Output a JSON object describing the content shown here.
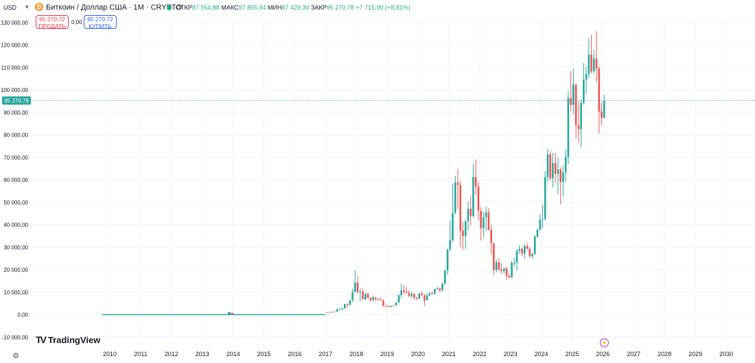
{
  "header": {
    "currency": "USD",
    "symbol_title": "Биткоин / Доллар США · 1M · CRYPTO",
    "open_label": "ОТКР",
    "open_value": "87 554,88",
    "high_label": "МАКС",
    "high_value": "97 855,94",
    "low_label": "МИН",
    "low_value": "87 429,30",
    "close_label": "ЗАКР",
    "close_value": "95 270,78",
    "change": "+7 715,90 (+8,81%)"
  },
  "trade": {
    "sell_price": "95 270,72",
    "sell_label": "ПРОДАТЬ",
    "spread": "0,00",
    "buy_price": "95 270,72",
    "buy_label": "КУПИТЬ"
  },
  "branding": {
    "logo_text": "TradingView"
  },
  "icons": {
    "coin": "bitcoin-icon",
    "settings": "gear-icon",
    "event": "lightning-icon"
  },
  "colors": {
    "up": "#26a69a",
    "down": "#ef5350",
    "price_line": "#26a69a"
  },
  "chart_data": {
    "type": "candlestick",
    "title": "Биткоин / Доллар США · 1M · CRYPTO",
    "ylim": [
      -10000,
      130000
    ],
    "yticks": [
      "-10 000,00",
      "0,00",
      "10 000,00",
      "20 000,00",
      "30 000,00",
      "40 000,00",
      "50 000,00",
      "60 000,00",
      "70 000,00",
      "80 000,00",
      "90 000,00",
      "100 000,00",
      "110 000,00",
      "120 000,00",
      "130 000,00"
    ],
    "ytick_values": [
      -10000,
      0,
      10000,
      20000,
      30000,
      40000,
      50000,
      60000,
      70000,
      80000,
      90000,
      100000,
      110000,
      120000,
      130000
    ],
    "xticks": [
      "2010",
      "2011",
      "2012",
      "2013",
      "2014",
      "2015",
      "2016",
      "2017",
      "2018",
      "2019",
      "2020",
      "2021",
      "2022",
      "2023",
      "2024",
      "2025",
      "2026",
      "2027",
      "2028",
      "2029",
      "2030"
    ],
    "last_price_label": "95 270,78",
    "last_price": 95270.78,
    "grid": true,
    "candles": [
      {
        "t": "2017-01",
        "o": 1000,
        "h": 1200,
        "l": 750,
        "c": 970
      },
      {
        "t": "2017-02",
        "o": 970,
        "h": 1200,
        "l": 910,
        "c": 1190
      },
      {
        "t": "2017-03",
        "o": 1190,
        "h": 1300,
        "l": 890,
        "c": 1080
      },
      {
        "t": "2017-04",
        "o": 1080,
        "h": 1420,
        "l": 1070,
        "c": 1350
      },
      {
        "t": "2017-05",
        "o": 1350,
        "h": 2800,
        "l": 1350,
        "c": 2300
      },
      {
        "t": "2017-06",
        "o": 2300,
        "h": 3000,
        "l": 2100,
        "c": 2480
      },
      {
        "t": "2017-07",
        "o": 2480,
        "h": 2900,
        "l": 1830,
        "c": 2870
      },
      {
        "t": "2017-08",
        "o": 2870,
        "h": 4700,
        "l": 2670,
        "c": 4730
      },
      {
        "t": "2017-09",
        "o": 4730,
        "h": 5000,
        "l": 2970,
        "c": 4340
      },
      {
        "t": "2017-10",
        "o": 4340,
        "h": 6450,
        "l": 4110,
        "c": 6450
      },
      {
        "t": "2017-11",
        "o": 6450,
        "h": 11500,
        "l": 5500,
        "c": 10000
      },
      {
        "t": "2017-12",
        "o": 10000,
        "h": 19700,
        "l": 10000,
        "c": 14200
      },
      {
        "t": "2018-01",
        "o": 14200,
        "h": 17200,
        "l": 9400,
        "c": 10200
      },
      {
        "t": "2018-02",
        "o": 10200,
        "h": 11800,
        "l": 6000,
        "c": 10300
      },
      {
        "t": "2018-03",
        "o": 10300,
        "h": 11700,
        "l": 6600,
        "c": 6900
      },
      {
        "t": "2018-04",
        "o": 6900,
        "h": 9700,
        "l": 6400,
        "c": 9200
      },
      {
        "t": "2018-05",
        "o": 9200,
        "h": 9900,
        "l": 7100,
        "c": 7500
      },
      {
        "t": "2018-06",
        "o": 7500,
        "h": 7700,
        "l": 5800,
        "c": 6400
      },
      {
        "t": "2018-07",
        "o": 6400,
        "h": 8500,
        "l": 6100,
        "c": 7700
      },
      {
        "t": "2018-08",
        "o": 7700,
        "h": 7800,
        "l": 5900,
        "c": 7000
      },
      {
        "t": "2018-09",
        "o": 7000,
        "h": 7400,
        "l": 6100,
        "c": 6600
      },
      {
        "t": "2018-10",
        "o": 6600,
        "h": 7500,
        "l": 6200,
        "c": 6300
      },
      {
        "t": "2018-11",
        "o": 6300,
        "h": 6600,
        "l": 3500,
        "c": 4000
      },
      {
        "t": "2018-12",
        "o": 4000,
        "h": 4200,
        "l": 3100,
        "c": 3700
      },
      {
        "t": "2019-01",
        "o": 3700,
        "h": 4100,
        "l": 3300,
        "c": 3400
      },
      {
        "t": "2019-02",
        "o": 3400,
        "h": 4200,
        "l": 3400,
        "c": 3800
      },
      {
        "t": "2019-03",
        "o": 3800,
        "h": 4100,
        "l": 3700,
        "c": 4100
      },
      {
        "t": "2019-04",
        "o": 4100,
        "h": 5600,
        "l": 4100,
        "c": 5300
      },
      {
        "t": "2019-05",
        "o": 5300,
        "h": 9100,
        "l": 5300,
        "c": 8600
      },
      {
        "t": "2019-06",
        "o": 8600,
        "h": 13900,
        "l": 7500,
        "c": 10800
      },
      {
        "t": "2019-07",
        "o": 10800,
        "h": 13200,
        "l": 9100,
        "c": 10100
      },
      {
        "t": "2019-08",
        "o": 10100,
        "h": 12300,
        "l": 9400,
        "c": 9600
      },
      {
        "t": "2019-09",
        "o": 9600,
        "h": 10900,
        "l": 7800,
        "c": 8300
      },
      {
        "t": "2019-10",
        "o": 8300,
        "h": 10400,
        "l": 7300,
        "c": 9200
      },
      {
        "t": "2019-11",
        "o": 9200,
        "h": 9500,
        "l": 6500,
        "c": 7600
      },
      {
        "t": "2019-12",
        "o": 7600,
        "h": 7700,
        "l": 6400,
        "c": 7200
      },
      {
        "t": "2020-01",
        "o": 7200,
        "h": 9600,
        "l": 6900,
        "c": 9350
      },
      {
        "t": "2020-02",
        "o": 9350,
        "h": 10500,
        "l": 8400,
        "c": 8550
      },
      {
        "t": "2020-03",
        "o": 8550,
        "h": 9200,
        "l": 3800,
        "c": 6400
      },
      {
        "t": "2020-04",
        "o": 6400,
        "h": 9500,
        "l": 6200,
        "c": 8600
      },
      {
        "t": "2020-05",
        "o": 8600,
        "h": 10100,
        "l": 8100,
        "c": 9450
      },
      {
        "t": "2020-06",
        "o": 9450,
        "h": 10400,
        "l": 8900,
        "c": 9150
      },
      {
        "t": "2020-07",
        "o": 9150,
        "h": 11500,
        "l": 8900,
        "c": 11350
      },
      {
        "t": "2020-08",
        "o": 11350,
        "h": 12500,
        "l": 11000,
        "c": 11650
      },
      {
        "t": "2020-09",
        "o": 11650,
        "h": 12100,
        "l": 9900,
        "c": 10800
      },
      {
        "t": "2020-10",
        "o": 10800,
        "h": 14100,
        "l": 10400,
        "c": 13800
      },
      {
        "t": "2020-11",
        "o": 13800,
        "h": 19900,
        "l": 13200,
        "c": 19700
      },
      {
        "t": "2020-12",
        "o": 19700,
        "h": 29300,
        "l": 17600,
        "c": 29000
      },
      {
        "t": "2021-01",
        "o": 29000,
        "h": 41900,
        "l": 28100,
        "c": 33100
      },
      {
        "t": "2021-02",
        "o": 33100,
        "h": 58300,
        "l": 32300,
        "c": 45200
      },
      {
        "t": "2021-03",
        "o": 45200,
        "h": 61800,
        "l": 45000,
        "c": 58800
      },
      {
        "t": "2021-04",
        "o": 58800,
        "h": 64800,
        "l": 47000,
        "c": 57700
      },
      {
        "t": "2021-05",
        "o": 57700,
        "h": 59500,
        "l": 30000,
        "c": 37300
      },
      {
        "t": "2021-06",
        "o": 37300,
        "h": 41300,
        "l": 28800,
        "c": 35000
      },
      {
        "t": "2021-07",
        "o": 35000,
        "h": 42400,
        "l": 29300,
        "c": 41500
      },
      {
        "t": "2021-08",
        "o": 41500,
        "h": 50500,
        "l": 37300,
        "c": 47100
      },
      {
        "t": "2021-09",
        "o": 47100,
        "h": 52900,
        "l": 39600,
        "c": 43800
      },
      {
        "t": "2021-10",
        "o": 43800,
        "h": 67000,
        "l": 43300,
        "c": 61300
      },
      {
        "t": "2021-11",
        "o": 61300,
        "h": 69000,
        "l": 53300,
        "c": 57000
      },
      {
        "t": "2021-12",
        "o": 57000,
        "h": 59100,
        "l": 42000,
        "c": 46200
      },
      {
        "t": "2022-01",
        "o": 46200,
        "h": 47900,
        "l": 32900,
        "c": 38500
      },
      {
        "t": "2022-02",
        "o": 38500,
        "h": 45800,
        "l": 34300,
        "c": 43200
      },
      {
        "t": "2022-03",
        "o": 43200,
        "h": 48200,
        "l": 37200,
        "c": 45500
      },
      {
        "t": "2022-04",
        "o": 45500,
        "h": 47400,
        "l": 37600,
        "c": 37700
      },
      {
        "t": "2022-05",
        "o": 37700,
        "h": 40000,
        "l": 26700,
        "c": 31800
      },
      {
        "t": "2022-06",
        "o": 31800,
        "h": 31900,
        "l": 17600,
        "c": 19900
      },
      {
        "t": "2022-07",
        "o": 19900,
        "h": 24700,
        "l": 18800,
        "c": 23300
      },
      {
        "t": "2022-08",
        "o": 23300,
        "h": 25200,
        "l": 19600,
        "c": 20000
      },
      {
        "t": "2022-09",
        "o": 20000,
        "h": 22800,
        "l": 18200,
        "c": 19400
      },
      {
        "t": "2022-10",
        "o": 19400,
        "h": 21100,
        "l": 18200,
        "c": 20500
      },
      {
        "t": "2022-11",
        "o": 20500,
        "h": 21500,
        "l": 15500,
        "c": 17200
      },
      {
        "t": "2022-12",
        "o": 17200,
        "h": 18400,
        "l": 16300,
        "c": 16500
      },
      {
        "t": "2023-01",
        "o": 16500,
        "h": 23900,
        "l": 16500,
        "c": 23100
      },
      {
        "t": "2023-02",
        "o": 23100,
        "h": 25300,
        "l": 21400,
        "c": 23100
      },
      {
        "t": "2023-03",
        "o": 23100,
        "h": 29200,
        "l": 19600,
        "c": 28500
      },
      {
        "t": "2023-04",
        "o": 28500,
        "h": 31000,
        "l": 26900,
        "c": 29300
      },
      {
        "t": "2023-05",
        "o": 29300,
        "h": 29800,
        "l": 25900,
        "c": 27200
      },
      {
        "t": "2023-06",
        "o": 27200,
        "h": 31400,
        "l": 24800,
        "c": 30500
      },
      {
        "t": "2023-07",
        "o": 30500,
        "h": 31800,
        "l": 28900,
        "c": 29300
      },
      {
        "t": "2023-08",
        "o": 29300,
        "h": 30200,
        "l": 25200,
        "c": 26000
      },
      {
        "t": "2023-09",
        "o": 26000,
        "h": 27500,
        "l": 24900,
        "c": 27000
      },
      {
        "t": "2023-10",
        "o": 27000,
        "h": 35200,
        "l": 26600,
        "c": 34700
      },
      {
        "t": "2023-11",
        "o": 34700,
        "h": 38400,
        "l": 34100,
        "c": 37700
      },
      {
        "t": "2023-12",
        "o": 37700,
        "h": 44700,
        "l": 37700,
        "c": 42300
      },
      {
        "t": "2024-01",
        "o": 42300,
        "h": 48900,
        "l": 38500,
        "c": 42600
      },
      {
        "t": "2024-02",
        "o": 42600,
        "h": 64000,
        "l": 41900,
        "c": 61200
      },
      {
        "t": "2024-03",
        "o": 61200,
        "h": 73800,
        "l": 59100,
        "c": 71300
      },
      {
        "t": "2024-04",
        "o": 71300,
        "h": 72800,
        "l": 59600,
        "c": 60700
      },
      {
        "t": "2024-05",
        "o": 60700,
        "h": 71900,
        "l": 56600,
        "c": 67500
      },
      {
        "t": "2024-06",
        "o": 67500,
        "h": 71900,
        "l": 58500,
        "c": 62700
      },
      {
        "t": "2024-07",
        "o": 62700,
        "h": 70000,
        "l": 53500,
        "c": 64600
      },
      {
        "t": "2024-08",
        "o": 64600,
        "h": 65600,
        "l": 49000,
        "c": 59000
      },
      {
        "t": "2024-09",
        "o": 59000,
        "h": 66500,
        "l": 52500,
        "c": 63300
      },
      {
        "t": "2024-10",
        "o": 63300,
        "h": 73600,
        "l": 58900,
        "c": 70200
      },
      {
        "t": "2024-11",
        "o": 70200,
        "h": 99600,
        "l": 66800,
        "c": 96400
      },
      {
        "t": "2024-12",
        "o": 96400,
        "h": 108300,
        "l": 90500,
        "c": 93400
      },
      {
        "t": "2025-01",
        "o": 93400,
        "h": 109400,
        "l": 89200,
        "c": 102400
      },
      {
        "t": "2025-02",
        "o": 102400,
        "h": 102500,
        "l": 78200,
        "c": 84300
      },
      {
        "t": "2025-03",
        "o": 84300,
        "h": 95000,
        "l": 76600,
        "c": 82500
      },
      {
        "t": "2025-04",
        "o": 82500,
        "h": 95800,
        "l": 74400,
        "c": 94200
      },
      {
        "t": "2025-05",
        "o": 94200,
        "h": 111900,
        "l": 93400,
        "c": 104600
      },
      {
        "t": "2025-06",
        "o": 104600,
        "h": 110500,
        "l": 98200,
        "c": 107100
      },
      {
        "t": "2025-07",
        "o": 107100,
        "h": 123200,
        "l": 105100,
        "c": 115700
      },
      {
        "t": "2025-08",
        "o": 115700,
        "h": 124500,
        "l": 107300,
        "c": 108200
      },
      {
        "t": "2025-09",
        "o": 108200,
        "h": 117900,
        "l": 107200,
        "c": 114000
      },
      {
        "t": "2025-10",
        "o": 114000,
        "h": 126200,
        "l": 103500,
        "c": 109500
      },
      {
        "t": "2025-11",
        "o": 109500,
        "h": 110600,
        "l": 80600,
        "c": 90400
      },
      {
        "t": "2025-12",
        "o": 90400,
        "h": 94600,
        "l": 84400,
        "c": 87554.88
      },
      {
        "t": "2026-01",
        "o": 87554.88,
        "h": 97855.94,
        "l": 87429.3,
        "c": 95270.78
      }
    ]
  }
}
